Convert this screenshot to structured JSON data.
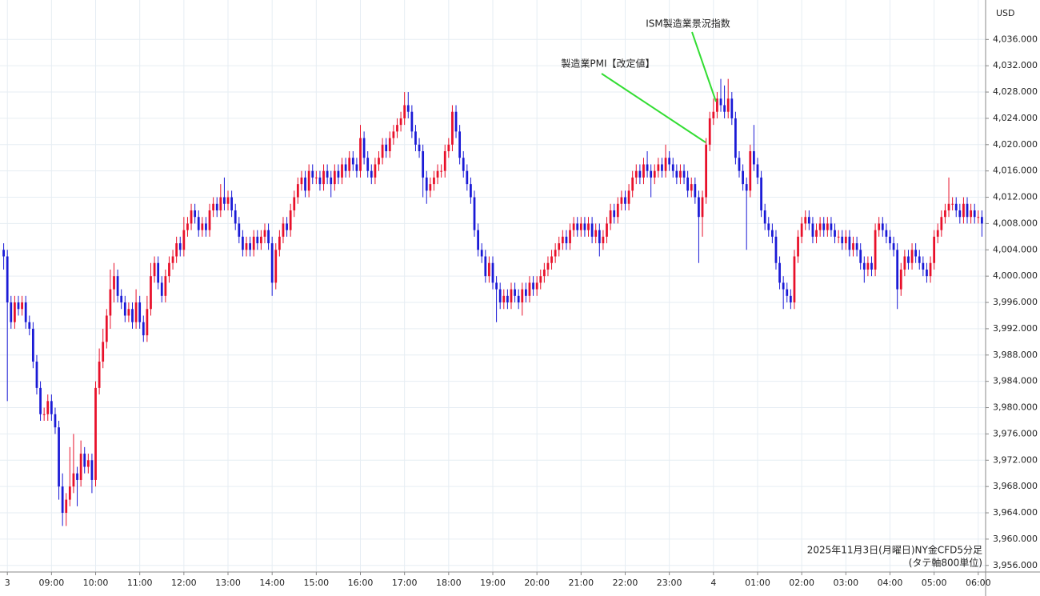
{
  "chart_data": {
    "type": "candlestick",
    "currency": "USD",
    "up_color": "#e8102a",
    "down_color": "#1a1ad6",
    "grid": true,
    "grid_color": "#e6edf3",
    "xlim": [
      -1,
      267
    ],
    "ylim": [
      3955,
      4042
    ],
    "xticks": [
      {
        "value": 1,
        "label": "3"
      },
      {
        "value": 13,
        "label": "09:00"
      },
      {
        "value": 25,
        "label": "10:00"
      },
      {
        "value": 37,
        "label": "11:00"
      },
      {
        "value": 49,
        "label": "12:00"
      },
      {
        "value": 61,
        "label": "13:00"
      },
      {
        "value": 73,
        "label": "14:00"
      },
      {
        "value": 85,
        "label": "15:00"
      },
      {
        "value": 97,
        "label": "16:00"
      },
      {
        "value": 109,
        "label": "17:00"
      },
      {
        "value": 121,
        "label": "18:00"
      },
      {
        "value": 133,
        "label": "19:00"
      },
      {
        "value": 145,
        "label": "20:00"
      },
      {
        "value": 157,
        "label": "21:00"
      },
      {
        "value": 169,
        "label": "22:00"
      },
      {
        "value": 181,
        "label": "23:00"
      },
      {
        "value": 193,
        "label": "4"
      },
      {
        "value": 205,
        "label": "01:00"
      },
      {
        "value": 217,
        "label": "02:00"
      },
      {
        "value": 229,
        "label": "03:00"
      },
      {
        "value": 241,
        "label": "04:00"
      },
      {
        "value": 253,
        "label": "05:00"
      },
      {
        "value": 265,
        "label": "06:00"
      }
    ],
    "yticks": [
      {
        "value": 3956,
        "label": "3,956.000"
      },
      {
        "value": 3960,
        "label": "3,960.000"
      },
      {
        "value": 3964,
        "label": "3,964.000"
      },
      {
        "value": 3968,
        "label": "3,968.000"
      },
      {
        "value": 3972,
        "label": "3,972.000"
      },
      {
        "value": 3976,
        "label": "3,976.000"
      },
      {
        "value": 3980,
        "label": "3,980.000"
      },
      {
        "value": 3984,
        "label": "3,984.000"
      },
      {
        "value": 3988,
        "label": "3,988.000"
      },
      {
        "value": 3992,
        "label": "3,992.000"
      },
      {
        "value": 3996,
        "label": "3,996.000"
      },
      {
        "value": 4000,
        "label": "4,000.000"
      },
      {
        "value": 4004,
        "label": "4,004.000"
      },
      {
        "value": 4008,
        "label": "4,008.000"
      },
      {
        "value": 4012,
        "label": "4,012.000"
      },
      {
        "value": 4016,
        "label": "4,016.000"
      },
      {
        "value": 4020,
        "label": "4,020.000"
      },
      {
        "value": 4024,
        "label": "4,024.000"
      },
      {
        "value": 4028,
        "label": "4,028.000"
      },
      {
        "value": 4032,
        "label": "4,032.000"
      },
      {
        "value": 4036,
        "label": "4,036.000"
      }
    ],
    "annotations": [
      {
        "text": "ISM製造業景況指数",
        "color": "#33dd33"
      },
      {
        "text": "製造業PMI【改定値】",
        "color": "#33dd33"
      }
    ],
    "footer": {
      "title": "2025年11月3日(月曜日)NY金CFD5分足",
      "note": "(タテ軸800単位)",
      "note_color": "#e8102a"
    },
    "open": [
      4004,
      4003,
      3996,
      3993,
      3996,
      3995,
      3996,
      3993,
      3992,
      3987,
      3983,
      3979,
      3979,
      3981,
      3979,
      3977,
      3968,
      3964,
      3966,
      3968,
      3970,
      3969,
      3973,
      3971,
      3972,
      3969,
      3983,
      3987,
      3990,
      3994,
      3998,
      4000,
      3997,
      3996,
      3994,
      3995,
      3993,
      3996,
      3993,
      3991,
      3995,
      4000,
      4002,
      3999,
      3997,
      4000,
      4002,
      4003,
      4005,
      4004,
      4007,
      4008,
      4010,
      4009,
      4007,
      4008,
      4007,
      4010,
      4011,
      4010,
      4012,
      4011,
      4012,
      4010,
      4008,
      4006,
      4004,
      4005,
      4004,
      4006,
      4005,
      4006,
      4007,
      4005,
      3999,
      4004,
      4006,
      4008,
      4007,
      4010,
      4012,
      4014,
      4015,
      4013,
      4016,
      4015,
      4015,
      4014,
      4016,
      4015,
      4014,
      4016,
      4015,
      4017,
      4016,
      4018,
      4017,
      4016,
      4021,
      4018,
      4016,
      4015,
      4017,
      4018,
      4020,
      4019,
      4021,
      4022,
      4023,
      4024,
      4026,
      4025,
      4022,
      4020,
      4019,
      4015,
      4013,
      4014,
      4015,
      4016,
      4016,
      4019,
      4020,
      4025,
      4022,
      4018,
      4016,
      4014,
      4012,
      4007,
      4004,
      4003,
      4000,
      4002,
      3999,
      3998,
      3996,
      3997,
      3996,
      3998,
      3997,
      3996,
      3998,
      3997,
      3999,
      3998,
      3999,
      4000,
      4001,
      4002,
      4003,
      4004,
      4005,
      4006,
      4005,
      4007,
      4008,
      4007,
      4008,
      4007,
      4008,
      4006,
      4007,
      4005,
      4006,
      4008,
      4010,
      4009,
      4011,
      4012,
      4011,
      4013,
      4015,
      4016,
      4015,
      4017,
      4016,
      4015,
      4016,
      4017,
      4016,
      4018,
      4017,
      4016,
      4015,
      4016,
      4015,
      4013,
      4014,
      4012,
      4009,
      4012,
      4020,
      4024,
      4025,
      4027,
      4026,
      4025,
      4027,
      4024,
      4018,
      4016,
      4014,
      4013,
      4019,
      4017,
      4015,
      4010,
      4008,
      4007,
      4006,
      4002,
      3999,
      3998,
      3997,
      3996,
      4003,
      4006,
      4008,
      4009,
      4008,
      4006,
      4007,
      4008,
      4007,
      4008,
      4007,
      4006,
      4006,
      4005,
      4006,
      4004,
      4005,
      4004,
      4002,
      4001,
      4002,
      4001,
      4007,
      4008,
      4007,
      4006,
      4005,
      4004,
      3998,
      4001,
      4003,
      4002,
      4004,
      4003,
      4002,
      4001,
      4000,
      4002,
      4006,
      4007,
      4009,
      4010,
      4011,
      4011,
      4010,
      4009,
      4011,
      4009,
      4010,
      4009,
      4009
    ],
    "high": [
      4005,
      4004,
      3997,
      3997,
      3997,
      3997,
      3997,
      3994,
      3993,
      3988,
      3984,
      3980,
      3982,
      3982,
      3980,
      3978,
      3970,
      3967,
      3974,
      3976,
      3971,
      3975,
      3974,
      3973,
      3973,
      3984,
      3989,
      3992,
      3995,
      4001,
      4002,
      4001,
      3998,
      3997,
      3996,
      3996,
      3998,
      3997,
      3994,
      3997,
      4002,
      4003,
      4003,
      4000,
      4001,
      4003,
      4004,
      4006,
      4006,
      4009,
      4009,
      4011,
      4011,
      4010,
      4009,
      4009,
      4011,
      4012,
      4012,
      4014,
      4015,
      4013,
      4013,
      4011,
      4009,
      4007,
      4006,
      4006,
      4007,
      4007,
      4007,
      4008,
      4008,
      4006,
      4005,
      4007,
      4009,
      4009,
      4011,
      4013,
      4015,
      4016,
      4016,
      4017,
      4017,
      4016,
      4016,
      4017,
      4017,
      4016,
      4017,
      4017,
      4018,
      4018,
      4019,
      4019,
      4018,
      4023,
      4022,
      4019,
      4017,
      4018,
      4019,
      4021,
      4021,
      4022,
      4023,
      4024,
      4025,
      4028,
      4028,
      4026,
      4023,
      4021,
      4020,
      4016,
      4015,
      4016,
      4017,
      4017,
      4020,
      4021,
      4026,
      4026,
      4023,
      4019,
      4017,
      4015,
      4013,
      4008,
      4005,
      4004,
      4003,
      4003,
      4000,
      3999,
      3998,
      3998,
      3999,
      3999,
      3998,
      3999,
      3999,
      4000,
      4000,
      4000,
      4001,
      4002,
      4003,
      4004,
      4005,
      4006,
      4007,
      4007,
      4008,
      4009,
      4009,
      4009,
      4009,
      4009,
      4009,
      4008,
      4008,
      4007,
      4009,
      4011,
      4011,
      4012,
      4013,
      4013,
      4014,
      4016,
      4017,
      4017,
      4018,
      4019,
      4017,
      4017,
      4018,
      4018,
      4020,
      4019,
      4018,
      4017,
      4017,
      4017,
      4016,
      4015,
      4015,
      4013,
      4013,
      4021,
      4025,
      4027,
      4028,
      4030,
      4029,
      4030,
      4028,
      4025,
      4019,
      4017,
      4015,
      4020,
      4023,
      4018,
      4016,
      4011,
      4009,
      4008,
      4007,
      4003,
      4000,
      3999,
      3998,
      4004,
      4007,
      4009,
      4010,
      4010,
      4009,
      4008,
      4009,
      4009,
      4009,
      4009,
      4008,
      4007,
      4007,
      4007,
      4007,
      4006,
      4006,
      4005,
      4003,
      4003,
      4003,
      4008,
      4009,
      4009,
      4008,
      4007,
      4006,
      4005,
      4002,
      4004,
      4004,
      4005,
      4005,
      4004,
      4003,
      4002,
      4003,
      4007,
      4008,
      4010,
      4011,
      4015,
      4012,
      4012,
      4011,
      4012,
      4012,
      4011,
      4011,
      4010,
      4010
    ],
    "low": [
      4001,
      3981,
      3992,
      3992,
      3994,
      3994,
      3992,
      3991,
      3986,
      3982,
      3978,
      3978,
      3978,
      3978,
      3976,
      3966,
      3962,
      3962,
      3965,
      3967,
      3965,
      3968,
      3970,
      3970,
      3967,
      3968,
      3982,
      3986,
      3989,
      3992,
      3996,
      3996,
      3995,
      3993,
      3993,
      3992,
      3992,
      3992,
      3990,
      3990,
      3994,
      3999,
      3998,
      3996,
      3996,
      3999,
      4001,
      4002,
      4003,
      4003,
      4006,
      4007,
      4008,
      4006,
      4006,
      4006,
      4006,
      4009,
      4009,
      4009,
      4010,
      4010,
      4009,
      4007,
      4005,
      4003,
      4003,
      4003,
      4003,
      4004,
      4004,
      4005,
      4004,
      3997,
      3998,
      4003,
      4005,
      4006,
      4006,
      4009,
      4011,
      4013,
      4012,
      4012,
      4014,
      4014,
      4013,
      4013,
      4014,
      4012,
      4013,
      4014,
      4014,
      4015,
      4015,
      4016,
      4015,
      4015,
      4017,
      4015,
      4014,
      4014,
      4016,
      4017,
      4018,
      4018,
      4020,
      4021,
      4022,
      4023,
      4024,
      4021,
      4019,
      4018,
      4012,
      4011,
      4012,
      4013,
      4014,
      4015,
      4015,
      4018,
      4019,
      4021,
      4017,
      4015,
      4013,
      4011,
      4006,
      4003,
      4002,
      3999,
      3999,
      3998,
      3993,
      3995,
      3995,
      3995,
      3995,
      3996,
      3995,
      3994,
      3996,
      3996,
      3997,
      3997,
      3998,
      3999,
      4000,
      4001,
      4002,
      4003,
      4004,
      4004,
      4004,
      4006,
      4006,
      4006,
      4006,
      4006,
      4005,
      4005,
      4003,
      4004,
      4005,
      4007,
      4008,
      4008,
      4010,
      4010,
      4010,
      4012,
      4014,
      4014,
      4014,
      4015,
      4012,
      4014,
      4015,
      4015,
      4015,
      4016,
      4015,
      4014,
      4014,
      4014,
      4012,
      4012,
      4011,
      4002,
      4006,
      4011,
      4019,
      4023,
      4024,
      4025,
      4024,
      4024,
      4023,
      4017,
      4015,
      4013,
      4004,
      4012,
      4016,
      4014,
      4009,
      4007,
      4006,
      4005,
      4001,
      3998,
      3995,
      3996,
      3995,
      3995,
      4002,
      4005,
      4007,
      4007,
      4005,
      4005,
      4006,
      4006,
      4006,
      4006,
      4005,
      4005,
      4004,
      4004,
      4003,
      4003,
      4003,
      4001,
      3999,
      4000,
      4000,
      4000,
      4006,
      4006,
      4005,
      4004,
      4003,
      3995,
      3997,
      4000,
      4001,
      4001,
      4002,
      4001,
      4000,
      3999,
      3999,
      4001,
      4005,
      4006,
      4008,
      4009,
      4010,
      4009,
      4008,
      4008,
      4008,
      4008,
      4008,
      4008,
      4006
    ],
    "close": [
      4003,
      3996,
      3993,
      3996,
      3995,
      3996,
      3993,
      3992,
      3987,
      3983,
      3979,
      3979,
      3981,
      3979,
      3977,
      3968,
      3964,
      3966,
      3968,
      3970,
      3969,
      3973,
      3971,
      3972,
      3969,
      3983,
      3987,
      3990,
      3994,
      3998,
      4000,
      3997,
      3996,
      3994,
      3995,
      3993,
      3996,
      3993,
      3991,
      3995,
      4000,
      4002,
      3999,
      3997,
      4000,
      4002,
      4003,
      4005,
      4004,
      4007,
      4008,
      4010,
      4009,
      4007,
      4008,
      4007,
      4010,
      4011,
      4010,
      4012,
      4011,
      4012,
      4010,
      4008,
      4006,
      4004,
      4005,
      4004,
      4006,
      4005,
      4006,
      4007,
      4005,
      3999,
      4004,
      4006,
      4008,
      4007,
      4010,
      4012,
      4014,
      4015,
      4013,
      4016,
      4015,
      4015,
      4014,
      4016,
      4015,
      4014,
      4016,
      4015,
      4017,
      4016,
      4018,
      4017,
      4016,
      4021,
      4018,
      4016,
      4015,
      4017,
      4018,
      4020,
      4019,
      4021,
      4022,
      4023,
      4024,
      4026,
      4025,
      4022,
      4020,
      4019,
      4015,
      4013,
      4014,
      4015,
      4016,
      4016,
      4019,
      4020,
      4025,
      4022,
      4018,
      4016,
      4014,
      4012,
      4007,
      4004,
      4003,
      4000,
      4002,
      3999,
      3998,
      3996,
      3997,
      3996,
      3998,
      3997,
      3996,
      3998,
      3997,
      3999,
      3998,
      3999,
      4000,
      4001,
      4002,
      4003,
      4004,
      4005,
      4006,
      4005,
      4007,
      4008,
      4007,
      4008,
      4007,
      4008,
      4006,
      4007,
      4005,
      4006,
      4008,
      4010,
      4009,
      4011,
      4012,
      4011,
      4013,
      4015,
      4016,
      4015,
      4017,
      4016,
      4015,
      4016,
      4017,
      4016,
      4018,
      4017,
      4016,
      4015,
      4016,
      4015,
      4013,
      4014,
      4012,
      4009,
      4012,
      4020,
      4024,
      4025,
      4027,
      4026,
      4025,
      4027,
      4024,
      4018,
      4016,
      4014,
      4013,
      4019,
      4017,
      4015,
      4010,
      4008,
      4007,
      4006,
      4002,
      3999,
      3998,
      3997,
      3996,
      4003,
      4006,
      4008,
      4009,
      4008,
      4006,
      4007,
      4008,
      4007,
      4008,
      4007,
      4006,
      4006,
      4005,
      4006,
      4004,
      4005,
      4004,
      4002,
      4001,
      4002,
      4001,
      4007,
      4008,
      4007,
      4006,
      4005,
      4004,
      3998,
      4001,
      4003,
      4002,
      4004,
      4003,
      4002,
      4001,
      4000,
      4002,
      4006,
      4007,
      4009,
      4010,
      4011,
      4011,
      4010,
      4009,
      4011,
      4009,
      4010,
      4009,
      4009,
      4008
    ]
  }
}
